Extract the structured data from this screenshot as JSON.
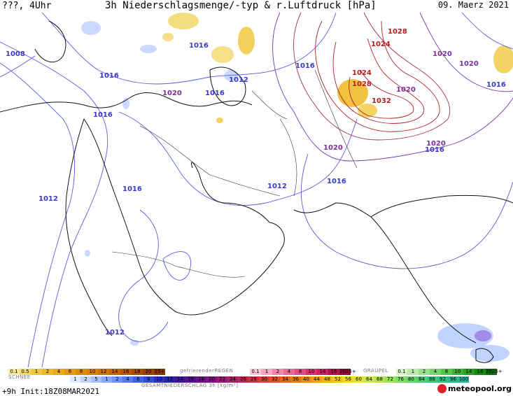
{
  "header": {
    "left": "???, 4Uhr",
    "title": "3h Niederschlagsmenge/-typ & r.Luftdruck [hPa]",
    "date": "09. Maerz 2021"
  },
  "isobars": [
    {
      "label": "1008",
      "color": "#3a3ac8"
    },
    {
      "label": "1016",
      "color": "#3a3ac8"
    },
    {
      "label": "1016",
      "color": "#3a3ac8"
    },
    {
      "label": "1016",
      "color": "#3a3ac8"
    },
    {
      "label": "1016",
      "color": "#3a3ac8"
    },
    {
      "label": "1016",
      "color": "#3a3ac8"
    },
    {
      "label": "1016",
      "color": "#3a3ac8"
    },
    {
      "label": "1012",
      "color": "#3a3ac8"
    },
    {
      "label": "1020",
      "color": "#7a2f9a"
    },
    {
      "label": "1012",
      "color": "#3a3ac8"
    },
    {
      "label": "1012",
      "color": "#3a3ac8"
    },
    {
      "label": "1016",
      "color": "#3a3ac8"
    },
    {
      "label": "1012",
      "color": "#3a3ac8"
    },
    {
      "label": "1020",
      "color": "#7a2f9a"
    },
    {
      "label": "1028",
      "color": "#b02020"
    },
    {
      "label": "1024",
      "color": "#b02020"
    },
    {
      "label": "1024",
      "color": "#b02020"
    },
    {
      "label": "1028",
      "color": "#b02020"
    },
    {
      "label": "1032",
      "color": "#b02020"
    },
    {
      "label": "1020",
      "color": "#7a2f9a"
    },
    {
      "label": "1020",
      "color": "#7a2f9a"
    },
    {
      "label": "1020",
      "color": "#7a2f9a"
    },
    {
      "label": "1016",
      "color": "#3a3ac8"
    },
    {
      "label": "1020",
      "color": "#7a2f9a"
    },
    {
      "label": "1016",
      "color": "#3a3ac8"
    },
    {
      "label": "1016",
      "color": "#3a3ac8"
    }
  ],
  "legend": {
    "snow_label": "SCHNEE",
    "snow_values": [
      "0.1",
      "0.5",
      "1",
      "2",
      "4",
      "6",
      "8",
      "10",
      "12",
      "14",
      "16",
      "18",
      "20",
      "25+"
    ],
    "rain_label": "gefrierenderREGEN",
    "rain_values": [
      "0.1",
      "1",
      "2",
      "4",
      "8",
      "10",
      "14",
      "16",
      "2025+"
    ],
    "graupel_label": "GRAUPEL",
    "graupel_values": [
      "0.1",
      "1",
      "2",
      "4",
      "8",
      "10",
      "14",
      "16",
      "2025+"
    ],
    "total_values": [
      "1",
      "2",
      "5",
      "1",
      "2",
      "4",
      "6",
      "8",
      "10",
      "12",
      "14",
      "16",
      "18",
      "20",
      "22",
      "24",
      "26",
      "28",
      "30",
      "32",
      "34",
      "36",
      "40",
      "44",
      "48",
      "52",
      "56",
      "60",
      "64",
      "68",
      "72",
      "76",
      "80",
      "84",
      "88",
      "92",
      "96",
      "100"
    ],
    "total_label": "GESAMTNIEDERSCHLAG 3h [kg/m²]",
    "snow_colors": [
      "#f7e9a0",
      "#f2d76a",
      "#f0c840",
      "#eeb820",
      "#e8a818",
      "#e39a12",
      "#de8c0e",
      "#d97f0a",
      "#cf7209",
      "#c46508",
      "#b85907",
      "#a94c06",
      "#9b4005",
      "#8a3504"
    ],
    "rain_colors": [
      "#f9c7d8",
      "#f5a7c0",
      "#f087aa",
      "#eb6795",
      "#e54a82",
      "#dd2e6f",
      "#cc1f5d",
      "#b3134b",
      "#99093a"
    ],
    "graupel_colors": [
      "#d6f5c8",
      "#b6ebaa",
      "#96e08b",
      "#74d46b",
      "#55c54d",
      "#3ab333",
      "#279e21",
      "#178813",
      "#0a7107"
    ],
    "total_colors": [
      "#dfe9ff",
      "#c3d5ff",
      "#a6c0ff",
      "#89a9ff",
      "#6e91ff",
      "#5678f5",
      "#4260e6",
      "#3349d4",
      "#2a33bf",
      "#2c20a8",
      "#3d1797",
      "#521290",
      "#691388",
      "#7f167f",
      "#951b72",
      "#a82263",
      "#b92b55",
      "#c83646",
      "#d44337",
      "#dd5229",
      "#e4641c",
      "#ea7712",
      "#ee8b0a",
      "#f1a008",
      "#f2b50a",
      "#f1c811",
      "#eed91f",
      "#e5e331",
      "#d2e641",
      "#b8e54e",
      "#9ce25a",
      "#80dc63",
      "#66d66b",
      "#4fcf73",
      "#3bc87b",
      "#2ec084",
      "#29b98d",
      "#2ab297"
    ]
  },
  "footer": {
    "left": "+9h  Init:18Z08MAR2021",
    "logo": "meteopool.org"
  }
}
